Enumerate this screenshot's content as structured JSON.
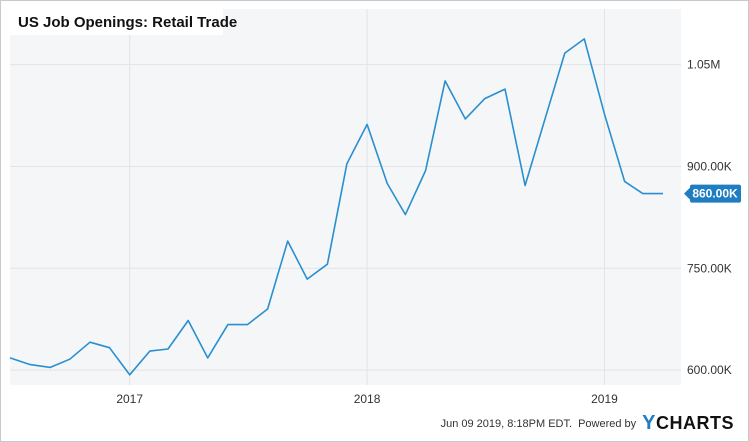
{
  "chart_data": {
    "type": "line",
    "title": "US Job Openings: Retail Trade",
    "x": [
      "2016-07",
      "2016-08",
      "2016-09",
      "2016-10",
      "2016-11",
      "2016-12",
      "2017-01",
      "2017-02",
      "2017-03",
      "2017-04",
      "2017-05",
      "2017-06",
      "2017-07",
      "2017-08",
      "2017-09",
      "2017-10",
      "2017-11",
      "2017-12",
      "2018-01",
      "2018-02",
      "2018-03",
      "2018-04",
      "2018-05",
      "2018-06",
      "2018-07",
      "2018-08",
      "2018-09",
      "2018-10",
      "2018-11",
      "2018-12",
      "2019-01",
      "2019-02",
      "2019-03",
      "2019-04"
    ],
    "series": [
      {
        "values": [
          618000,
          608000,
          604000,
          616000,
          641000,
          633000,
          593000,
          628000,
          631000,
          673000,
          618000,
          667000,
          667000,
          690000,
          790000,
          734000,
          756000,
          904000,
          962000,
          875000,
          829000,
          894000,
          1026000,
          970000,
          1000000,
          1014000,
          872000,
          968000,
          1067000,
          1088000,
          977000,
          878000,
          860000,
          860000
        ]
      }
    ],
    "x_ticks": [
      "2017",
      "2018",
      "2019"
    ],
    "y_ticks": [
      "600.00K",
      "750.00K",
      "900.00K",
      "1.05M"
    ],
    "y_tick_values": [
      600000,
      750000,
      900000,
      1050000
    ],
    "ylim": [
      578000,
      1132000
    ],
    "last_value_label": "860.00K",
    "grid": true,
    "line_color": "#2a8fd0",
    "plot_background": "#f5f6f7"
  },
  "footer": {
    "timestamp": "Jun 09 2019, 8:18PM EDT.",
    "powered_by": "Powered by",
    "brand_mark": "Y",
    "brand_text": "CHARTS"
  }
}
